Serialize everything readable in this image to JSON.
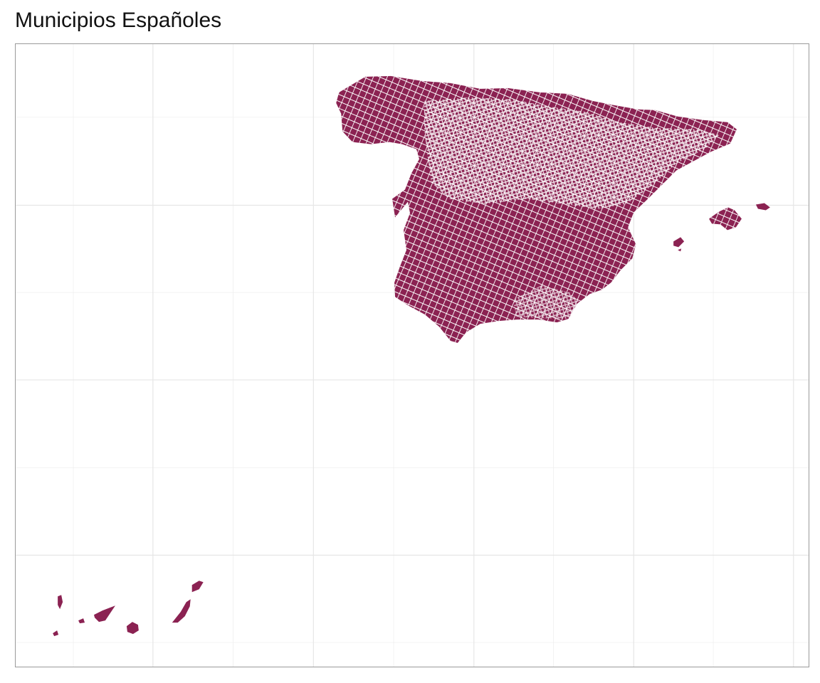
{
  "title": "Municipios Españoles",
  "map": {
    "fill_color": "#8b2252",
    "border_color": "#ffffff",
    "panel_border_color": "#9a9a9a",
    "grid_color": "#e6e6e6",
    "axis_labels_shown": false,
    "regions": [
      "Península Ibérica",
      "Islas Baleares",
      "Islas Canarias"
    ]
  }
}
